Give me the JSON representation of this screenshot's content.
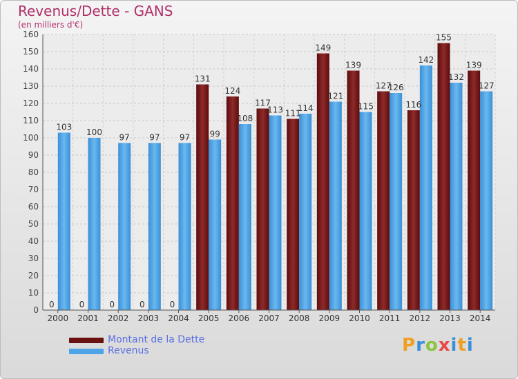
{
  "header": {
    "title": "Revenus/Dette - GANS",
    "subtitle": "(en milliers d'€)"
  },
  "colors": {
    "dette": "#7a1717",
    "revenus": "#4ea4e6",
    "title": "#b0306a",
    "legend_text": "#5a6fe0"
  },
  "legend": [
    {
      "label": "Montant de la Dette",
      "color": "#7a1717"
    },
    {
      "label": "Revenus",
      "color": "#4ea4e6"
    }
  ],
  "brand": {
    "letters": [
      "P",
      "r",
      "o",
      "x",
      "i",
      "t",
      "i"
    ],
    "colors": [
      "#f0a020",
      "#3a8fd8",
      "#8ac440",
      "#e84848",
      "#3a8fd8",
      "#f0a020",
      "#3a8fd8"
    ]
  },
  "chart_data": {
    "type": "bar",
    "categories": [
      "2000",
      "2001",
      "2002",
      "2003",
      "2004",
      "2005",
      "2006",
      "2007",
      "2008",
      "2009",
      "2010",
      "2011",
      "2012",
      "2013",
      "2014"
    ],
    "series": [
      {
        "name": "Montant de la Dette",
        "values": [
          0,
          0,
          0,
          0,
          0,
          131,
          124,
          117,
          111,
          149,
          139,
          127,
          116,
          155,
          139
        ]
      },
      {
        "name": "Revenus",
        "values": [
          103,
          100,
          97,
          97,
          97,
          99,
          108,
          113,
          114,
          121,
          115,
          126,
          142,
          132,
          127
        ]
      }
    ],
    "ylim": [
      0,
      160
    ],
    "yticks": [
      0,
      10,
      20,
      30,
      40,
      50,
      60,
      70,
      80,
      90,
      100,
      110,
      120,
      130,
      140,
      150,
      160
    ],
    "grid": true,
    "legend_position": "bottom-left"
  }
}
